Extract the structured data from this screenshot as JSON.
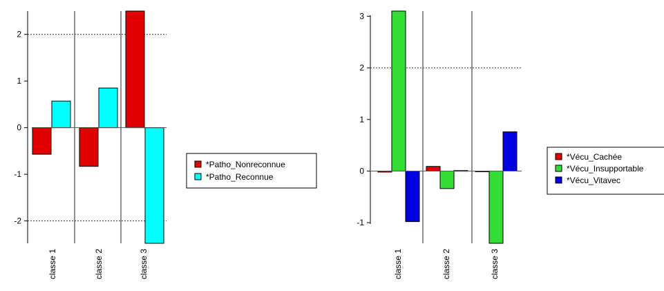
{
  "chart_data": [
    {
      "type": "bar",
      "categories": [
        "classe 1",
        "classe 2",
        "classe 3"
      ],
      "series": [
        {
          "name": "*Patho_Nonreconnue",
          "color": "#e00000",
          "values": [
            -0.57,
            -0.83,
            2.5
          ]
        },
        {
          "name": "*Patho_Reconnue",
          "color": "#00ffff",
          "values": [
            0.57,
            0.85,
            -2.48
          ]
        }
      ],
      "yticks": [
        -2,
        -1,
        0,
        1,
        2
      ],
      "ylim": [
        -2.48,
        2.5
      ],
      "reference_lines": [
        2,
        -2
      ],
      "legend_position": "right",
      "grid": false
    },
    {
      "type": "bar",
      "categories": [
        "classe 1",
        "classe 2",
        "classe 3"
      ],
      "series": [
        {
          "name": "*Vécu_Cachée",
          "color": "#e00000",
          "values": [
            -0.02,
            0.09,
            0.0
          ]
        },
        {
          "name": "*Vécu_Insupportable",
          "color": "#33dd33",
          "values": [
            3.1,
            -0.34,
            -1.4
          ]
        },
        {
          "name": "*Vécu_Vitavec",
          "color": "#0000e0",
          "values": [
            -0.98,
            0.01,
            0.76
          ]
        }
      ],
      "yticks": [
        -1,
        0,
        1,
        2,
        3
      ],
      "ylim": [
        -1.4,
        3.1
      ],
      "reference_lines": [
        2
      ],
      "legend_position": "right",
      "grid": false
    }
  ]
}
